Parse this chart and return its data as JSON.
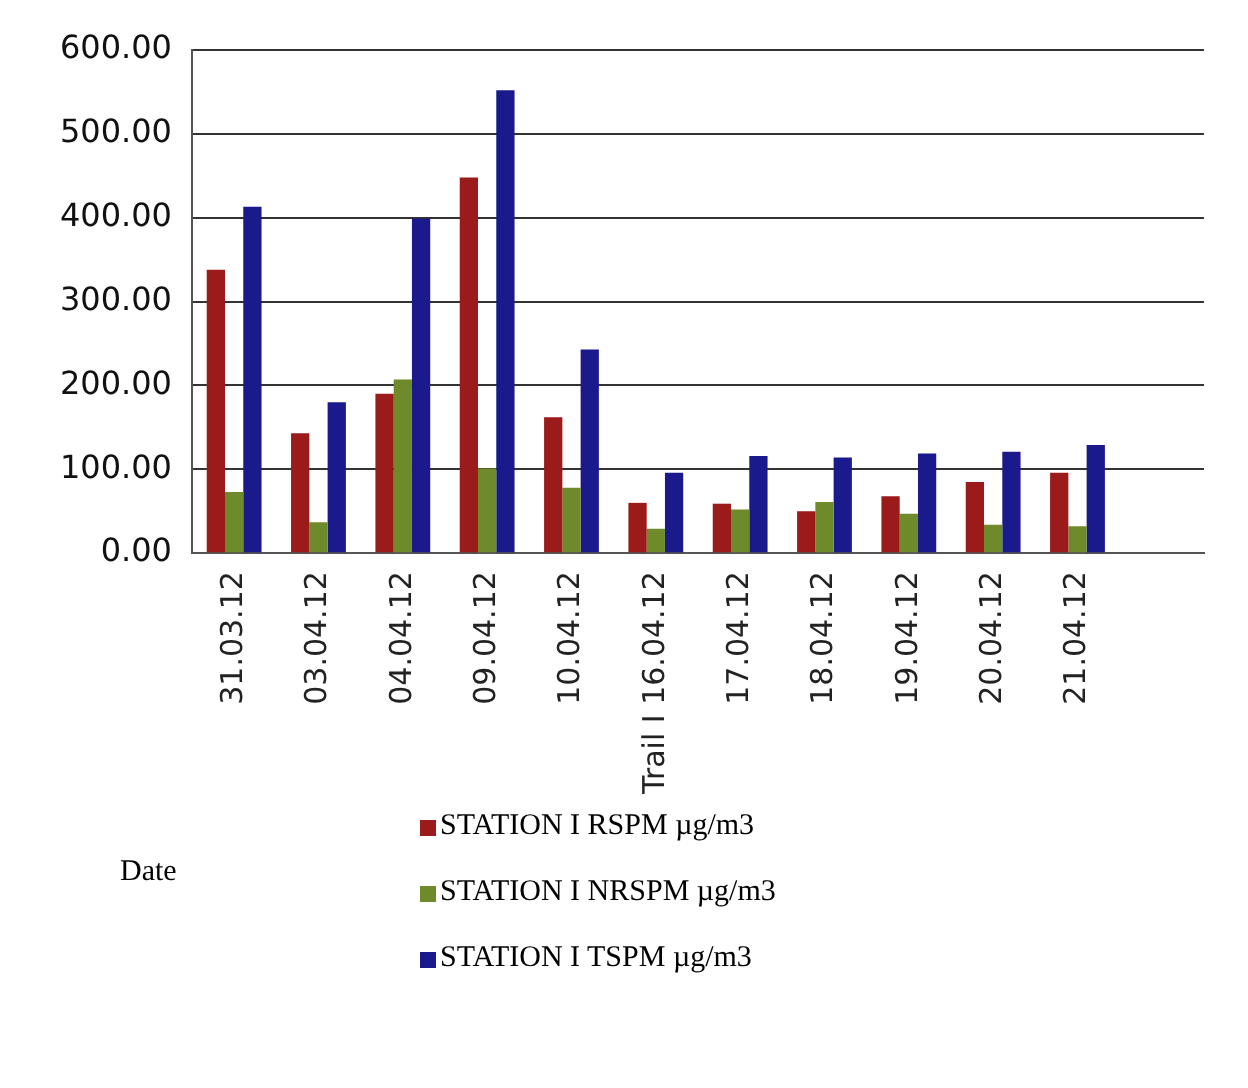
{
  "chart_data": {
    "type": "bar",
    "xlabel": "Date",
    "categories": [
      "31.03.12",
      "03.04.12",
      "04.04.12",
      "09.04.12",
      "10.04.12",
      "Trail I 16.04.12",
      "17.04.12",
      "18.04.12",
      "19.04.12",
      "20.04.12",
      "21.04.12",
      null
    ],
    "series": [
      {
        "name": "STATION I RSPM µg/m3",
        "color": "#9b1b1b",
        "values": [
          338,
          143,
          190,
          448,
          162,
          60,
          59,
          50,
          68,
          85,
          96,
          null
        ]
      },
      {
        "name": "STATION I NRSPM µg/m3",
        "color": "#6f8a2a",
        "values": [
          73,
          37,
          207,
          101,
          78,
          29,
          52,
          61,
          47,
          34,
          32,
          null
        ]
      },
      {
        "name": "STATION I TSPM µg/m3",
        "color": "#1a1a8c",
        "values": [
          413,
          180,
          399,
          552,
          243,
          96,
          116,
          114,
          119,
          121,
          129,
          null
        ]
      }
    ],
    "ylim": [
      0,
      600
    ],
    "yticks": [
      {
        "value": 0,
        "label": "0.00"
      },
      {
        "value": 100,
        "label": "100.00"
      },
      {
        "value": 200,
        "label": "200.00"
      },
      {
        "value": 300,
        "label": "300.00"
      },
      {
        "value": 400,
        "label": "400.00"
      },
      {
        "value": 500,
        "label": "500.00"
      },
      {
        "value": 600,
        "label": "600.00"
      }
    ],
    "grid": "y",
    "legend": "bottom"
  }
}
